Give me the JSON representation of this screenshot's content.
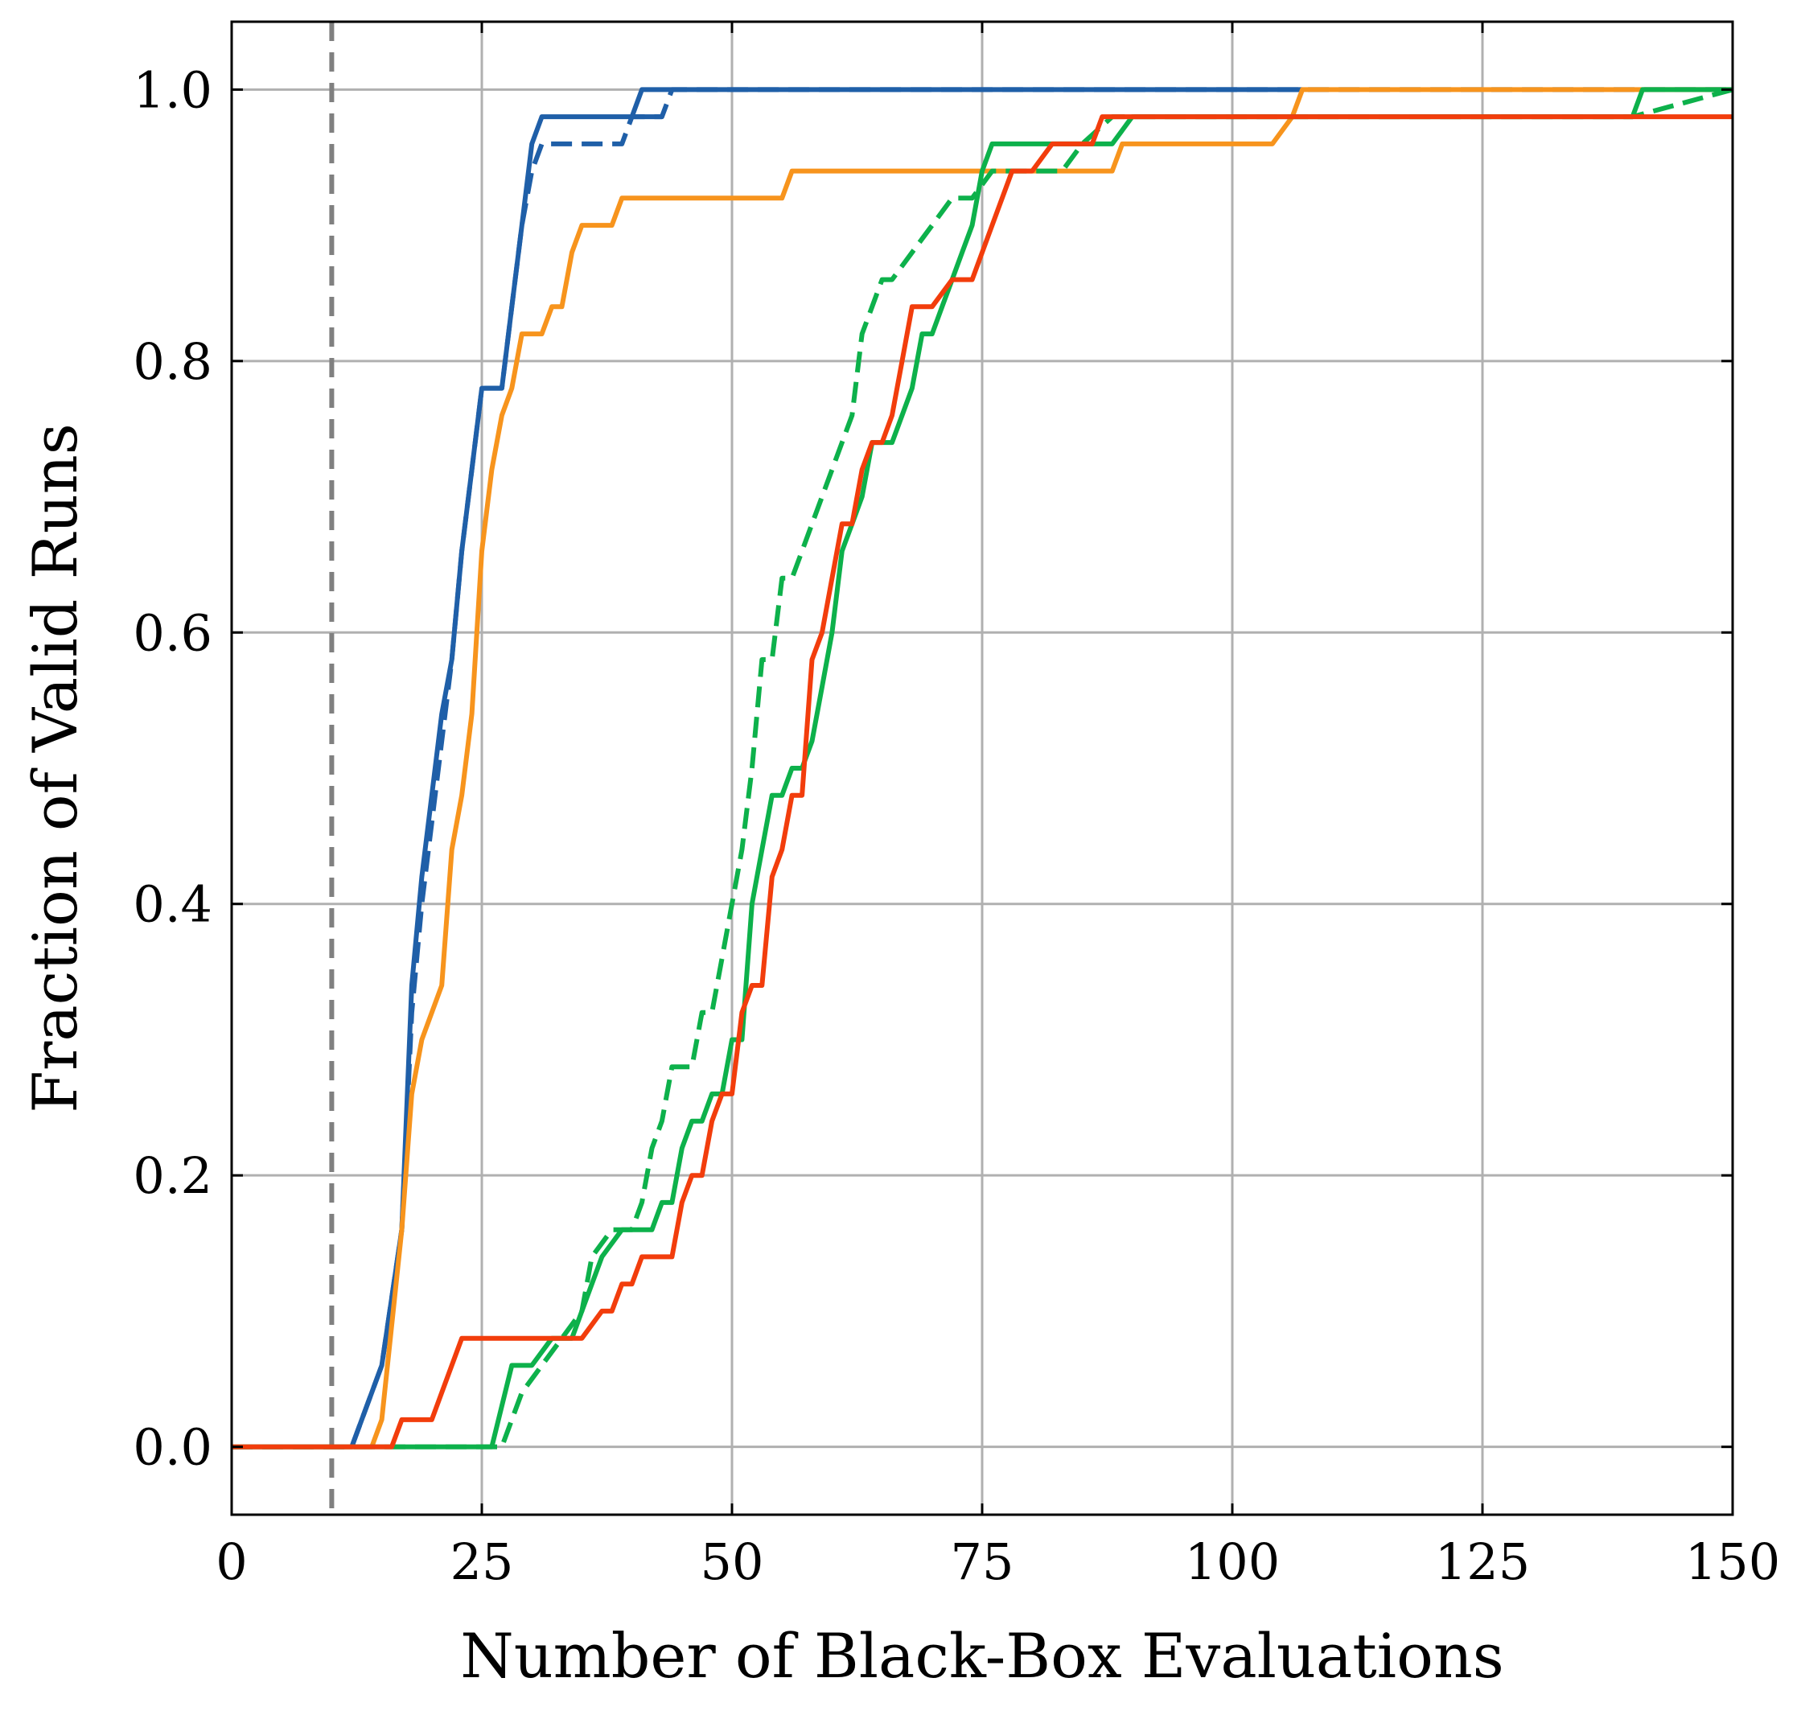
{
  "chart_data": {
    "type": "line",
    "title": "",
    "xlabel": "Number of Black-Box Evaluations",
    "ylabel": "Fraction of Valid Runs",
    "xlim": [
      0,
      150
    ],
    "ylim": [
      -0.05,
      1.05
    ],
    "xticks": [
      0,
      25,
      50,
      75,
      100,
      125,
      150
    ],
    "xtick_labels": [
      "0",
      "25",
      "50",
      "75",
      "100",
      "125",
      "150"
    ],
    "yticks": [
      0.0,
      0.2,
      0.4,
      0.6,
      0.8,
      1.0
    ],
    "ytick_labels": [
      "0.0",
      "0.2",
      "0.4",
      "0.6",
      "0.8",
      "1.0"
    ],
    "grid": true,
    "legend": "none",
    "vline": {
      "x": 10,
      "color": "#808080",
      "style": "dashed"
    },
    "series": [
      {
        "color": "#1f5fa8",
        "style": "dashed",
        "x": [
          0,
          12,
          15,
          17,
          18,
          19,
          20,
          21,
          22,
          23,
          24,
          25,
          27,
          28,
          29,
          30,
          31,
          35,
          39,
          40,
          42,
          43,
          44,
          150
        ],
        "y": [
          0,
          0,
          0.06,
          0.16,
          0.32,
          0.4,
          0.46,
          0.52,
          0.58,
          0.66,
          0.72,
          0.78,
          0.78,
          0.84,
          0.9,
          0.94,
          0.96,
          0.96,
          0.96,
          0.98,
          0.98,
          0.98,
          1.0,
          1.0
        ]
      },
      {
        "color": "#1f5fa8",
        "style": "solid",
        "x": [
          0,
          12,
          15,
          17,
          18,
          19,
          20,
          21,
          22,
          23,
          24,
          25,
          27,
          28,
          29,
          30,
          31,
          35,
          39,
          40,
          41,
          107
        ],
        "y": [
          0,
          0,
          0.06,
          0.16,
          0.34,
          0.42,
          0.48,
          0.54,
          0.58,
          0.66,
          0.72,
          0.78,
          0.78,
          0.84,
          0.9,
          0.96,
          0.98,
          0.98,
          0.98,
          0.98,
          1.0,
          1.0
        ]
      },
      {
        "color": "#1f5fa8",
        "style": "solid",
        "x": [
          40,
          43
        ],
        "y": [
          0.98,
          0.98
        ]
      },
      {
        "color": "#f7941d",
        "style": "solid",
        "x": [
          0,
          14,
          15,
          17,
          18,
          19,
          21,
          22,
          23,
          24,
          25,
          26,
          27,
          28,
          29,
          31,
          32,
          33,
          34,
          35,
          38,
          39,
          41,
          55,
          56,
          70,
          88,
          89,
          104,
          106,
          107,
          150
        ],
        "y": [
          0,
          0,
          0.02,
          0.16,
          0.26,
          0.3,
          0.34,
          0.44,
          0.48,
          0.54,
          0.66,
          0.72,
          0.76,
          0.78,
          0.82,
          0.82,
          0.84,
          0.84,
          0.88,
          0.9,
          0.9,
          0.92,
          0.92,
          0.92,
          0.94,
          0.94,
          0.94,
          0.96,
          0.96,
          0.98,
          1.0,
          1.0
        ]
      },
      {
        "color": "#0db14b",
        "style": "dashed",
        "x": [
          0,
          27,
          29,
          31,
          33,
          35,
          36,
          38,
          40,
          41,
          42,
          43,
          44,
          46,
          47,
          48,
          49,
          50,
          51,
          52,
          53,
          54,
          55,
          56,
          57,
          58,
          60,
          61,
          62,
          63,
          64,
          65,
          66,
          68,
          70,
          72,
          74,
          76,
          78,
          80,
          83,
          85,
          88,
          140,
          150
        ],
        "y": [
          0,
          0,
          0.04,
          0.06,
          0.08,
          0.1,
          0.14,
          0.16,
          0.16,
          0.18,
          0.22,
          0.24,
          0.28,
          0.28,
          0.32,
          0.32,
          0.36,
          0.4,
          0.44,
          0.5,
          0.58,
          0.58,
          0.64,
          0.64,
          0.66,
          0.68,
          0.72,
          0.74,
          0.76,
          0.82,
          0.84,
          0.86,
          0.86,
          0.88,
          0.9,
          0.92,
          0.92,
          0.94,
          0.94,
          0.94,
          0.94,
          0.96,
          0.98,
          0.98,
          1.0
        ]
      },
      {
        "color": "#0db14b",
        "style": "solid",
        "x": [
          0,
          26,
          28,
          30,
          32,
          34,
          35,
          36,
          37,
          39,
          42,
          43,
          44,
          45,
          46,
          47,
          48,
          49,
          50,
          51,
          52,
          53,
          54,
          55,
          56,
          57,
          58,
          59,
          60,
          61,
          62,
          63,
          64,
          65,
          66,
          67,
          68,
          69,
          70,
          71,
          72,
          73,
          74,
          75,
          76,
          82,
          88,
          90,
          139,
          140,
          141,
          150
        ],
        "y": [
          0,
          0,
          0.06,
          0.06,
          0.08,
          0.08,
          0.1,
          0.12,
          0.14,
          0.16,
          0.16,
          0.18,
          0.18,
          0.22,
          0.24,
          0.24,
          0.26,
          0.26,
          0.3,
          0.3,
          0.4,
          0.44,
          0.48,
          0.48,
          0.5,
          0.5,
          0.52,
          0.56,
          0.6,
          0.66,
          0.68,
          0.7,
          0.74,
          0.74,
          0.74,
          0.76,
          0.78,
          0.82,
          0.82,
          0.84,
          0.86,
          0.88,
          0.9,
          0.94,
          0.96,
          0.96,
          0.96,
          0.98,
          0.98,
          0.98,
          1.0,
          1.0
        ]
      },
      {
        "color": "#f23d0c",
        "style": "solid",
        "x": [
          0,
          16,
          17,
          18,
          20,
          21,
          23,
          35,
          37,
          38,
          39,
          40,
          41,
          42,
          44,
          45,
          46,
          47,
          48,
          49,
          50,
          51,
          52,
          53,
          54,
          55,
          56,
          57,
          58,
          59,
          60,
          61,
          62,
          63,
          64,
          65,
          66,
          67,
          68,
          69,
          70,
          72,
          74,
          76,
          78,
          80,
          82,
          84,
          86,
          87,
          150
        ],
        "y": [
          0,
          0,
          0.02,
          0.02,
          0.02,
          0.04,
          0.08,
          0.08,
          0.1,
          0.1,
          0.12,
          0.12,
          0.14,
          0.14,
          0.14,
          0.18,
          0.2,
          0.2,
          0.24,
          0.26,
          0.26,
          0.32,
          0.34,
          0.34,
          0.42,
          0.44,
          0.48,
          0.48,
          0.58,
          0.6,
          0.64,
          0.68,
          0.68,
          0.72,
          0.74,
          0.74,
          0.76,
          0.8,
          0.84,
          0.84,
          0.84,
          0.86,
          0.86,
          0.9,
          0.94,
          0.94,
          0.96,
          0.96,
          0.96,
          0.98,
          0.98
        ]
      }
    ]
  }
}
